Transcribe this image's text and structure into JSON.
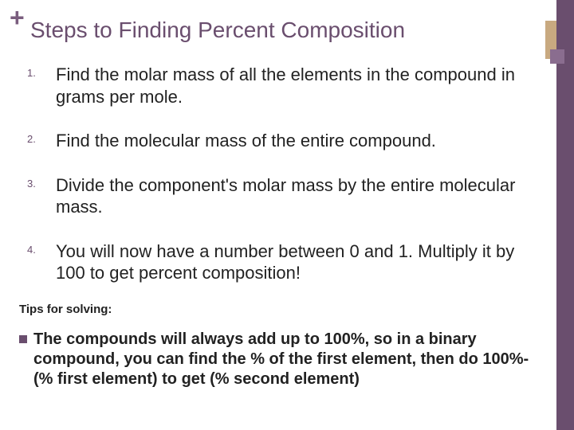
{
  "colors": {
    "sidebar": "#6a4e6e",
    "accent_tan": "#c8a980",
    "accent_mauve": "#8a6d8f",
    "plus": "#7a5d7e",
    "title": "#6a4e6e",
    "text": "#222222",
    "background": "#ffffff"
  },
  "typography": {
    "title_fontsize": 28,
    "step_fontsize": 22,
    "step_number_fontsize": 13,
    "tips_label_fontsize": 15,
    "tip_text_fontsize": 20,
    "font_family": "Arial"
  },
  "plus_glyph": "+",
  "title": "Steps to Finding Percent Composition",
  "steps": [
    {
      "num": "1.",
      "text": "Find the molar mass of all the elements in the compound in grams per mole."
    },
    {
      "num": "2.",
      "text": "Find the molecular mass of the entire compound."
    },
    {
      "num": "3.",
      "text": "Divide the component's molar mass by the entire molecular mass."
    },
    {
      "num": "4.",
      "text": "You will now have a number between 0 and 1. Multiply it by 100 to get percent composition!"
    }
  ],
  "tips_label": "Tips for solving:",
  "tip": "The compounds will always add up to 100%, so in a binary compound, you can find the % of the first element, then do 100%-(% first element) to get (% second element)"
}
